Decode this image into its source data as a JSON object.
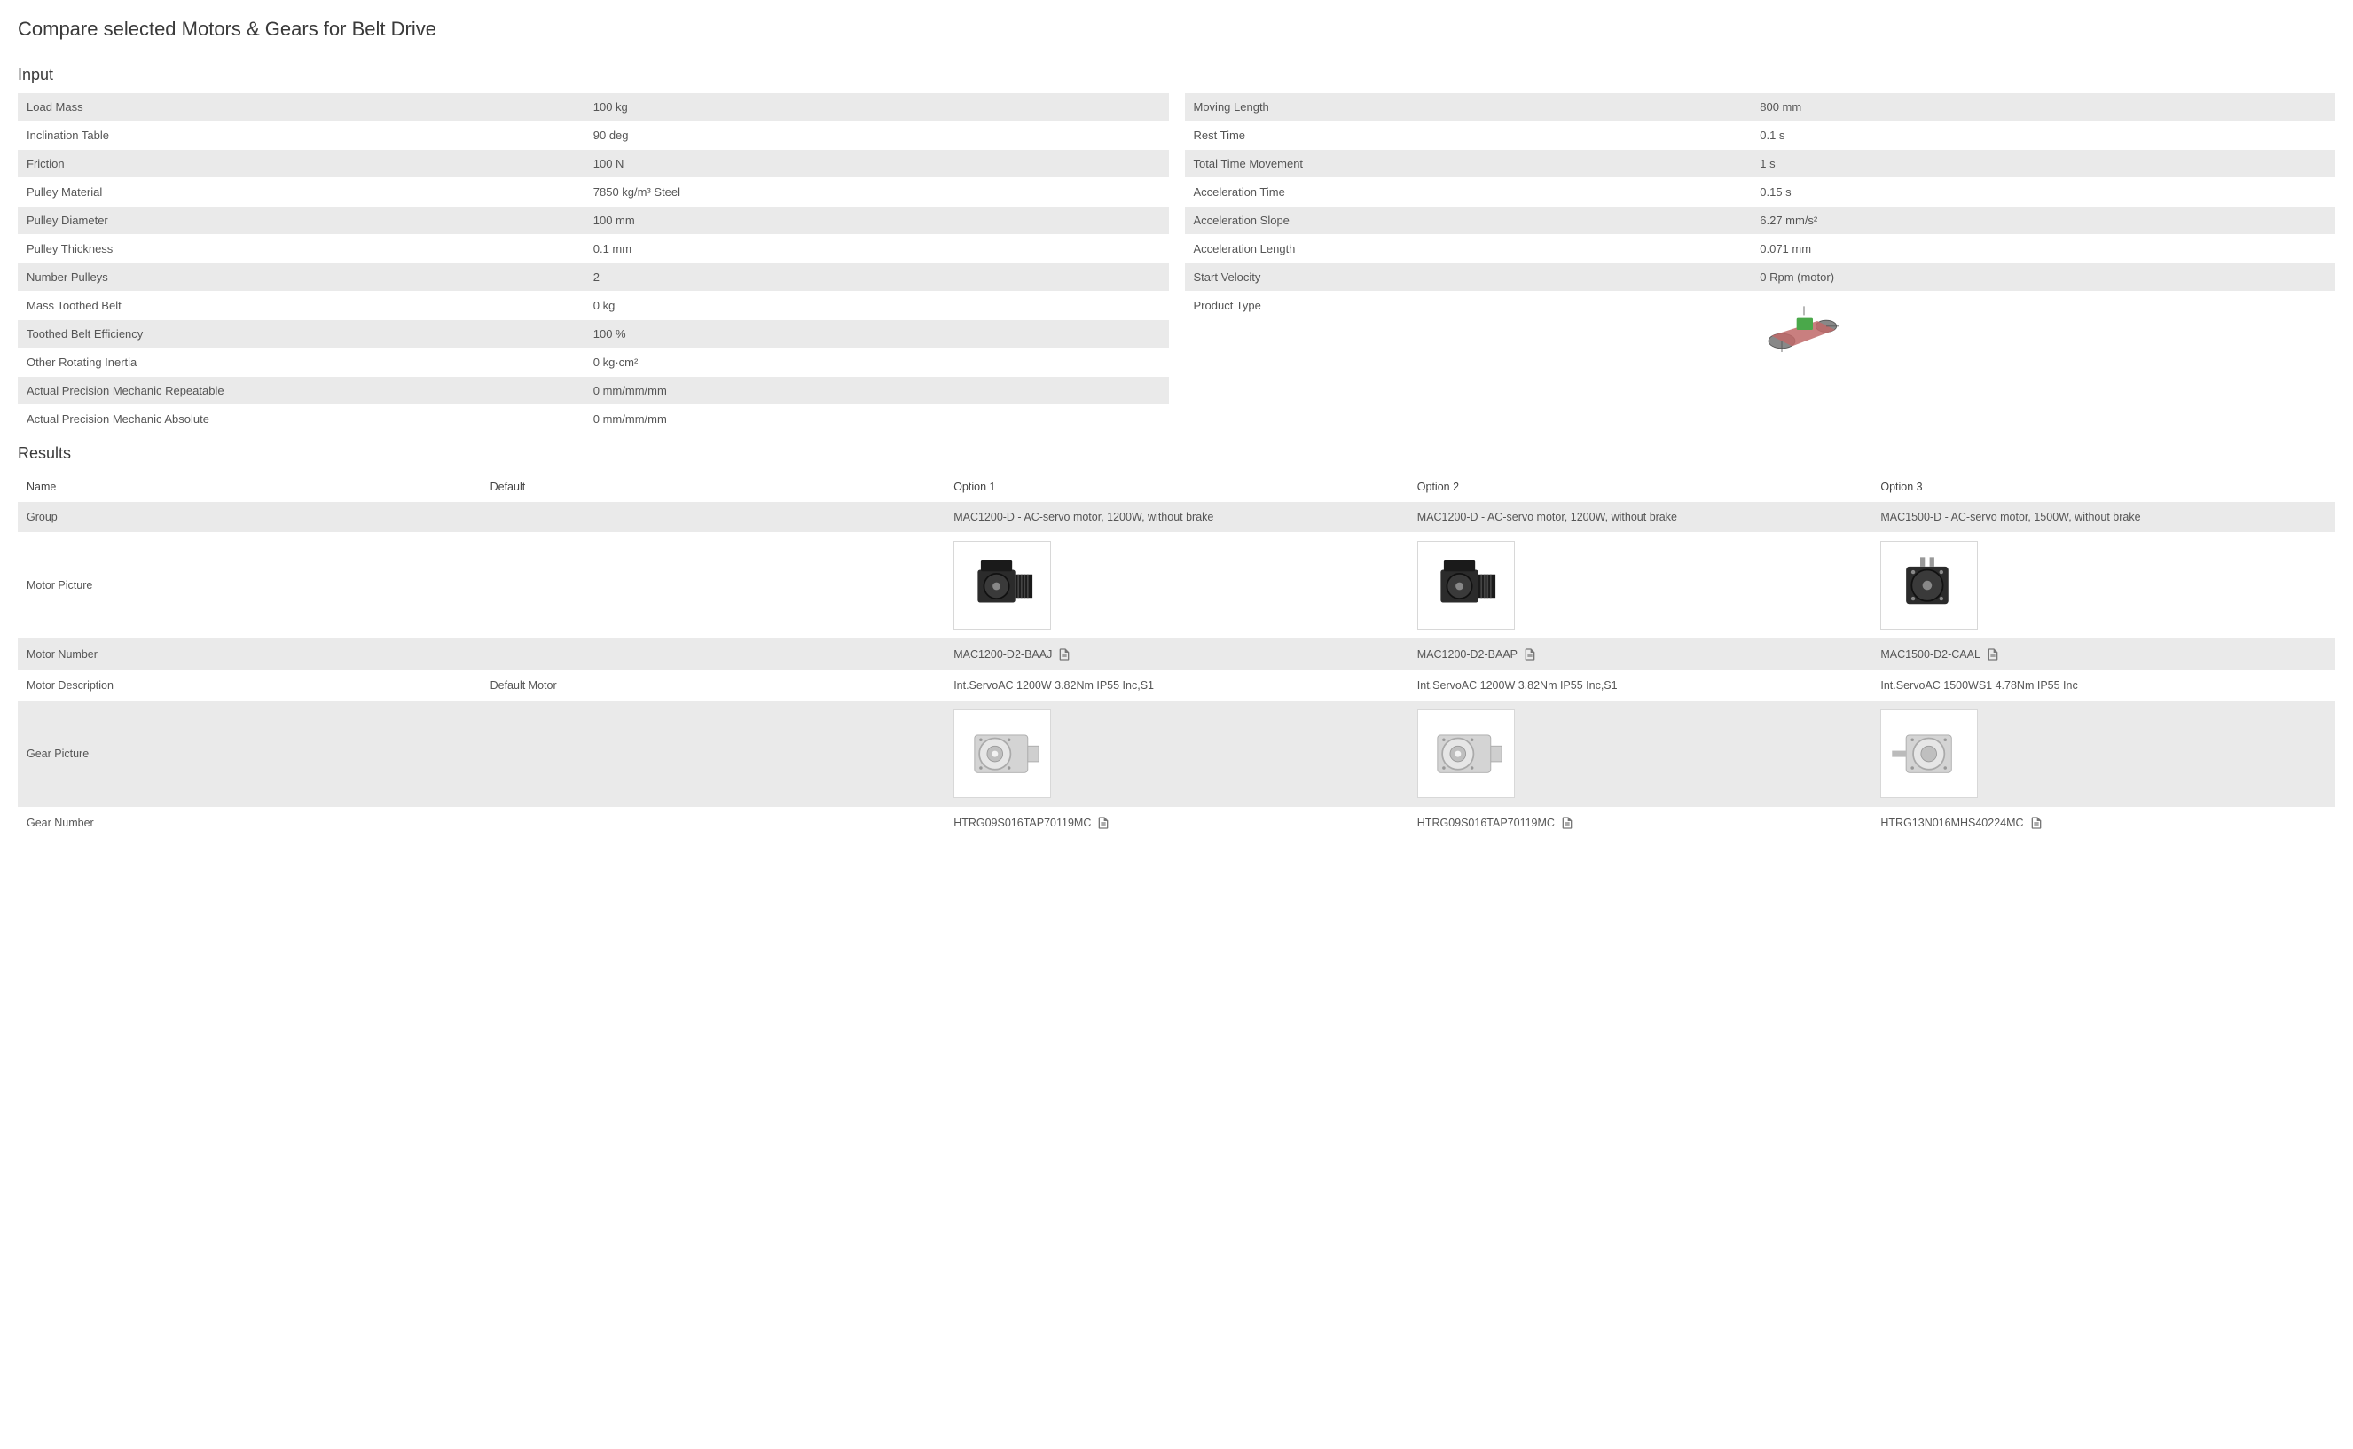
{
  "page_title": "Compare selected Motors & Gears for Belt Drive",
  "sections": {
    "input": "Input",
    "results": "Results"
  },
  "input_left": [
    {
      "label": "Load Mass",
      "value": "100 kg"
    },
    {
      "label": "Inclination Table",
      "value": "90 deg"
    },
    {
      "label": "Friction",
      "value": "100 N"
    },
    {
      "label": "Pulley Material",
      "value": "7850 kg/m³ Steel"
    },
    {
      "label": "Pulley Diameter",
      "value": "100 mm"
    },
    {
      "label": "Pulley Thickness",
      "value": "0.1 mm"
    },
    {
      "label": "Number Pulleys",
      "value": "2"
    },
    {
      "label": "Mass Toothed Belt",
      "value": "0 kg"
    },
    {
      "label": "Toothed Belt Efficiency",
      "value": "100 %"
    },
    {
      "label": "Other Rotating Inertia",
      "value": "0 kg·cm²"
    },
    {
      "label": "Actual Precision Mechanic Repeatable",
      "value": "0 mm/mm/mm"
    },
    {
      "label": "Actual Precision Mechanic Absolute",
      "value": "0 mm/mm/mm"
    }
  ],
  "input_right": [
    {
      "label": "Moving Length",
      "value": "800 mm"
    },
    {
      "label": "Rest Time",
      "value": "0.1 s"
    },
    {
      "label": "Total Time Movement",
      "value": "1 s"
    },
    {
      "label": "Acceleration Time",
      "value": "0.15 s"
    },
    {
      "label": "Acceleration Slope",
      "value": "6.27 mm/s²"
    },
    {
      "label": "Acceleration Length",
      "value": "0.071 mm"
    },
    {
      "label": "Start Velocity",
      "value": "0 Rpm (motor)"
    },
    {
      "label": "Product Type",
      "value": "",
      "diagram": true
    }
  ],
  "results": {
    "columns": [
      "Name",
      "Default",
      "Option 1",
      "Option 2",
      "Option 3"
    ],
    "rows": [
      {
        "name": "Group",
        "default": "",
        "opt1": "MAC1200-D - AC-servo motor, 1200W, without brake",
        "opt2": "MAC1200-D - AC-servo motor, 1200W, without brake",
        "opt3": "MAC1500-D - AC-servo motor, 1500W, without brake",
        "alt": true
      },
      {
        "name": "Motor Picture",
        "picture": "motor"
      },
      {
        "name": "Motor Number",
        "default": "",
        "opt1": "MAC1200-D2-BAAJ",
        "opt2": "MAC1200-D2-BAAP",
        "opt3": "MAC1500-D2-CAAL",
        "doc": true,
        "alt": true
      },
      {
        "name": "Motor Description",
        "default": "Default Motor",
        "opt1": "Int.ServoAC 1200W 3.82Nm IP55 Inc,S1",
        "opt2": "Int.ServoAC 1200W 3.82Nm IP55 Inc,S1",
        "opt3": "Int.ServoAC 1500WS1 4.78Nm IP55 Inc"
      },
      {
        "name": "Gear Picture",
        "picture": "gear",
        "alt": true
      },
      {
        "name": "Gear Number",
        "default": "",
        "opt1": "HTRG09S016TAP70119MC",
        "opt2": "HTRG09S016TAP70119MC",
        "opt3": "HTRG13N016MHS40224MC",
        "doc": true
      }
    ]
  },
  "colors": {
    "alt_row_bg": "#eaeaea",
    "text": "#555555",
    "heading": "#3a3a3a",
    "border": "#d8d8d8"
  }
}
